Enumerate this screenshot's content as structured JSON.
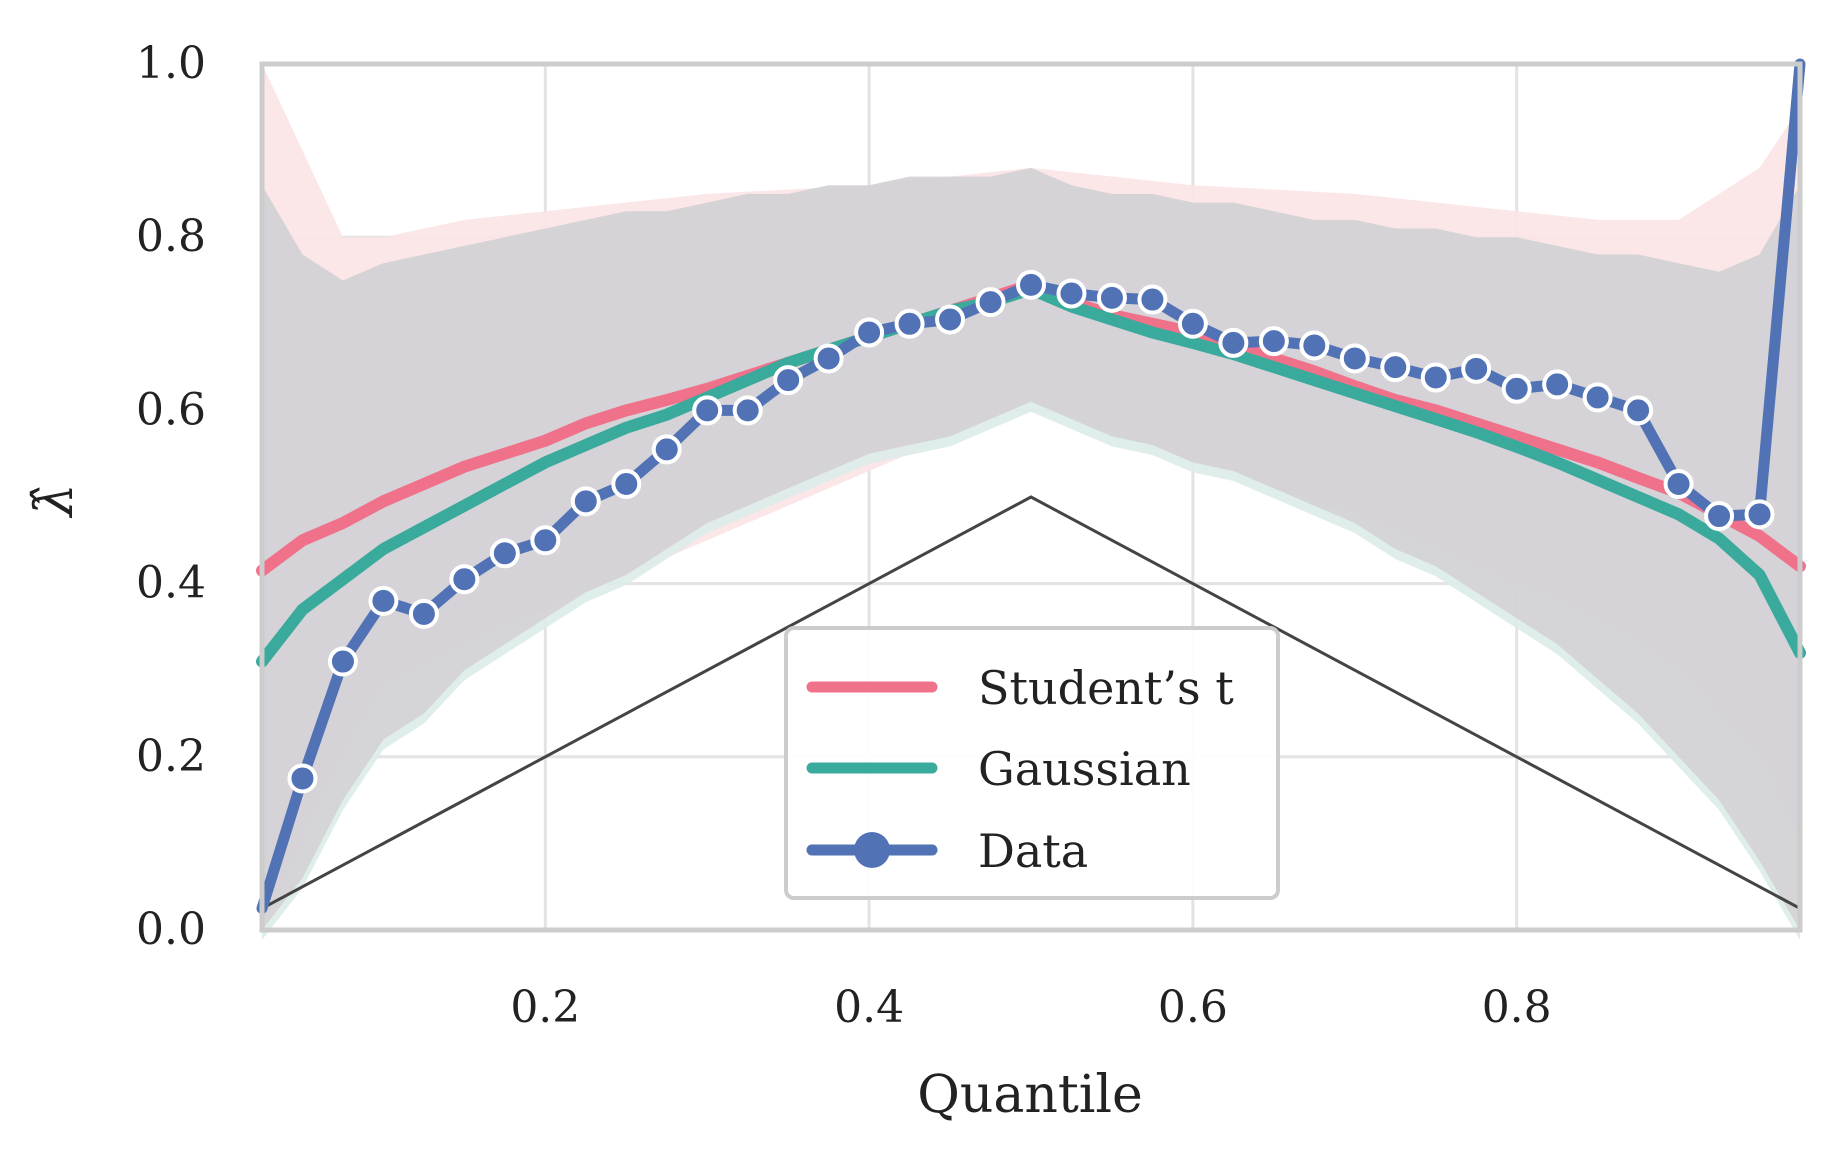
{
  "chart_data": {
    "type": "line",
    "title": "",
    "xlabel": "Quantile",
    "ylabel": "λ̂",
    "xlim": [
      0.025,
      0.975
    ],
    "ylim": [
      0.0,
      1.0
    ],
    "xticks": [
      0.2,
      0.4,
      0.6,
      0.8
    ],
    "xtick_labels": [
      "0.2",
      "0.4",
      "0.6",
      "0.8"
    ],
    "yticks": [
      0.0,
      0.2,
      0.4,
      0.6,
      0.8,
      1.0
    ],
    "ytick_labels": [
      "0.0",
      "0.2",
      "0.4",
      "0.6",
      "0.8",
      "1.0"
    ],
    "grid": true,
    "legend_position": "bottom-center",
    "colors": {
      "student": "#f0718a",
      "gaussian": "#39aa9c",
      "data": "#5172b4",
      "reference": "#444444",
      "band": "#d4d2d6",
      "band_student": "#fbe3e6",
      "band_gaussian": "#dcece9",
      "grid": "#e3e3e3",
      "frame": "#cccccc"
    },
    "reference_line": {
      "name": "min(q, 1-q)",
      "x": [
        0.025,
        0.5,
        0.975
      ],
      "y": [
        0.025,
        0.5,
        0.025
      ]
    },
    "series": [
      {
        "name": "Student’s t",
        "key": "student",
        "x": [
          0.025,
          0.05,
          0.075,
          0.1,
          0.125,
          0.15,
          0.175,
          0.2,
          0.225,
          0.25,
          0.275,
          0.3,
          0.325,
          0.35,
          0.375,
          0.4,
          0.425,
          0.45,
          0.475,
          0.5,
          0.525,
          0.55,
          0.575,
          0.6,
          0.625,
          0.65,
          0.675,
          0.7,
          0.725,
          0.75,
          0.775,
          0.8,
          0.825,
          0.85,
          0.875,
          0.9,
          0.925,
          0.95,
          0.975
        ],
        "values": [
          0.415,
          0.45,
          0.47,
          0.495,
          0.515,
          0.535,
          0.55,
          0.565,
          0.585,
          0.6,
          0.612,
          0.625,
          0.64,
          0.655,
          0.67,
          0.685,
          0.7,
          0.715,
          0.73,
          0.745,
          0.725,
          0.71,
          0.7,
          0.69,
          0.675,
          0.66,
          0.645,
          0.628,
          0.612,
          0.6,
          0.585,
          0.57,
          0.555,
          0.54,
          0.522,
          0.505,
          0.48,
          0.455,
          0.42
        ]
      },
      {
        "name": "Gaussian",
        "key": "gaussian",
        "x": [
          0.025,
          0.05,
          0.075,
          0.1,
          0.125,
          0.15,
          0.175,
          0.2,
          0.225,
          0.25,
          0.275,
          0.3,
          0.325,
          0.35,
          0.375,
          0.4,
          0.425,
          0.45,
          0.475,
          0.5,
          0.525,
          0.55,
          0.575,
          0.6,
          0.625,
          0.65,
          0.675,
          0.7,
          0.725,
          0.75,
          0.775,
          0.8,
          0.825,
          0.85,
          0.875,
          0.9,
          0.925,
          0.95,
          0.975
        ],
        "values": [
          0.31,
          0.37,
          0.405,
          0.44,
          0.465,
          0.49,
          0.515,
          0.54,
          0.56,
          0.58,
          0.595,
          0.615,
          0.635,
          0.655,
          0.67,
          0.685,
          0.7,
          0.715,
          0.725,
          0.74,
          0.72,
          0.705,
          0.69,
          0.678,
          0.665,
          0.65,
          0.635,
          0.62,
          0.605,
          0.59,
          0.575,
          0.558,
          0.54,
          0.52,
          0.5,
          0.48,
          0.452,
          0.41,
          0.32
        ]
      },
      {
        "name": "Data",
        "key": "data",
        "marker": "circle",
        "x": [
          0.025,
          0.05,
          0.075,
          0.1,
          0.125,
          0.15,
          0.175,
          0.2,
          0.225,
          0.25,
          0.275,
          0.3,
          0.325,
          0.35,
          0.375,
          0.4,
          0.425,
          0.45,
          0.475,
          0.5,
          0.525,
          0.55,
          0.575,
          0.6,
          0.625,
          0.65,
          0.675,
          0.7,
          0.725,
          0.75,
          0.775,
          0.8,
          0.825,
          0.85,
          0.875,
          0.9,
          0.925,
          0.95,
          0.975
        ],
        "values": [
          0.025,
          0.175,
          0.31,
          0.38,
          0.365,
          0.405,
          0.435,
          0.45,
          0.495,
          0.515,
          0.555,
          0.6,
          0.6,
          0.635,
          0.66,
          0.69,
          0.7,
          0.705,
          0.725,
          0.745,
          0.735,
          0.73,
          0.728,
          0.7,
          0.678,
          0.68,
          0.675,
          0.66,
          0.65,
          0.638,
          0.648,
          0.625,
          0.63,
          0.615,
          0.6,
          0.515,
          0.478,
          0.48,
          1.0
        ],
        "marker_x": [
          0.05,
          0.075,
          0.1,
          0.125,
          0.15,
          0.175,
          0.2,
          0.225,
          0.25,
          0.275,
          0.3,
          0.325,
          0.35,
          0.375,
          0.4,
          0.425,
          0.45,
          0.475,
          0.5,
          0.525,
          0.55,
          0.575,
          0.6,
          0.625,
          0.65,
          0.675,
          0.7,
          0.725,
          0.75,
          0.775,
          0.8,
          0.825,
          0.85,
          0.875,
          0.9,
          0.925,
          0.95
        ]
      }
    ],
    "band": {
      "name": "Uncertainty band",
      "x": [
        0.025,
        0.05,
        0.075,
        0.1,
        0.125,
        0.15,
        0.175,
        0.2,
        0.225,
        0.25,
        0.275,
        0.3,
        0.325,
        0.35,
        0.375,
        0.4,
        0.425,
        0.45,
        0.475,
        0.5,
        0.525,
        0.55,
        0.575,
        0.6,
        0.625,
        0.65,
        0.675,
        0.7,
        0.725,
        0.75,
        0.775,
        0.8,
        0.825,
        0.85,
        0.875,
        0.9,
        0.925,
        0.95,
        0.975
      ],
      "lower": [
        0.0,
        0.06,
        0.15,
        0.22,
        0.25,
        0.3,
        0.33,
        0.36,
        0.39,
        0.41,
        0.44,
        0.47,
        0.49,
        0.51,
        0.53,
        0.55,
        0.56,
        0.57,
        0.59,
        0.61,
        0.59,
        0.57,
        0.56,
        0.54,
        0.53,
        0.51,
        0.49,
        0.47,
        0.44,
        0.42,
        0.39,
        0.36,
        0.33,
        0.29,
        0.25,
        0.2,
        0.15,
        0.08,
        0.0
      ],
      "upper": [
        0.86,
        0.78,
        0.75,
        0.77,
        0.78,
        0.79,
        0.8,
        0.81,
        0.82,
        0.83,
        0.83,
        0.84,
        0.85,
        0.85,
        0.86,
        0.86,
        0.87,
        0.87,
        0.87,
        0.88,
        0.86,
        0.85,
        0.85,
        0.84,
        0.84,
        0.83,
        0.82,
        0.82,
        0.81,
        0.81,
        0.8,
        0.8,
        0.79,
        0.78,
        0.78,
        0.77,
        0.76,
        0.78,
        0.86
      ]
    },
    "band_student_outer": {
      "name": "Student’s t band",
      "x": [
        0.025,
        0.05,
        0.075,
        0.1,
        0.15,
        0.2,
        0.3,
        0.4,
        0.5,
        0.6,
        0.7,
        0.8,
        0.85,
        0.9,
        0.95,
        0.975
      ],
      "lower": [
        0.0,
        0.1,
        0.2,
        0.28,
        0.33,
        0.37,
        0.45,
        0.53,
        0.61,
        0.54,
        0.48,
        0.4,
        0.36,
        0.3,
        0.2,
        0.1
      ],
      "upper": [
        1.0,
        0.9,
        0.8,
        0.8,
        0.82,
        0.83,
        0.85,
        0.86,
        0.88,
        0.86,
        0.85,
        0.83,
        0.82,
        0.82,
        0.88,
        0.95
      ]
    }
  }
}
